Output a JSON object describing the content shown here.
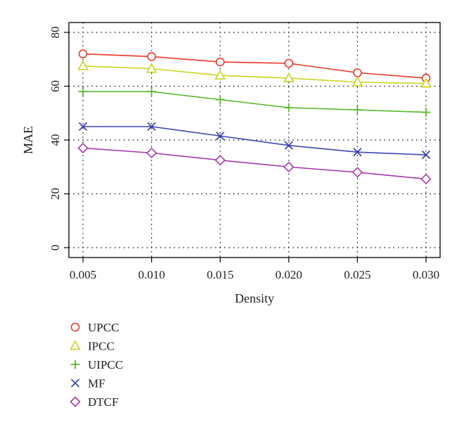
{
  "chart_data": {
    "type": "line",
    "xlabel": "Density",
    "ylabel": "MAE",
    "x": [
      0.005,
      0.01,
      0.015,
      0.02,
      0.025,
      0.03
    ],
    "x_tick_labels": [
      "0.005",
      "0.010",
      "0.015",
      "0.020",
      "0.025",
      "0.030"
    ],
    "xlim": [
      0.005,
      0.03
    ],
    "ylim": [
      0,
      80
    ],
    "y_ticks": [
      0,
      20,
      40,
      60,
      80
    ],
    "y_tick_labels": [
      "0",
      "20",
      "40",
      "60",
      "80"
    ],
    "grid": true,
    "legend_position": "bottom-left, below plot",
    "series": [
      {
        "name": "UPCC",
        "color": "#e8382a",
        "marker": "circle",
        "values": [
          72.0,
          71.0,
          69.0,
          68.5,
          65.0,
          63.0
        ]
      },
      {
        "name": "IPCC",
        "color": "#c9d420",
        "marker": "triangle",
        "values": [
          67.5,
          66.5,
          64.0,
          63.0,
          61.5,
          61.0
        ]
      },
      {
        "name": "UIPCC",
        "color": "#5ab82e",
        "marker": "plus",
        "values": [
          58.0,
          58.0,
          55.0,
          52.0,
          51.2,
          50.3
        ]
      },
      {
        "name": "MF",
        "color": "#3e47b0",
        "marker": "cross",
        "values": [
          45.0,
          45.0,
          41.5,
          38.0,
          35.5,
          34.5
        ]
      },
      {
        "name": "DTCF",
        "color": "#a63aaa",
        "marker": "diamond",
        "values": [
          37.0,
          35.2,
          32.5,
          30.0,
          28.0,
          25.5
        ]
      }
    ]
  }
}
